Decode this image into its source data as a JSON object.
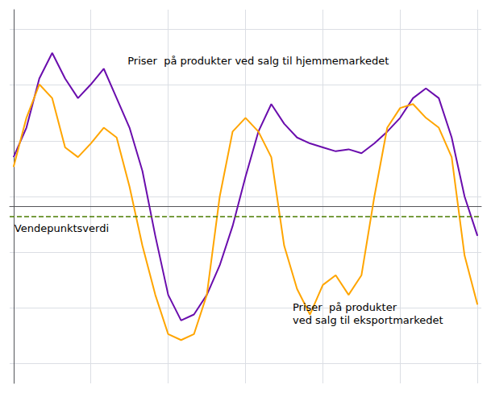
{
  "chart_data": {
    "type": "line",
    "x": [
      0,
      1,
      2,
      3,
      4,
      5,
      6,
      7,
      8,
      9,
      10,
      11,
      12,
      13,
      14,
      15,
      16,
      17,
      18,
      19,
      20,
      21,
      22,
      23,
      24,
      25,
      26,
      27,
      28,
      29,
      30,
      31,
      32,
      33,
      34,
      35,
      36
    ],
    "series": [
      {
        "color": "#6a0dad",
        "values": [
          2.5,
          4.0,
          6.5,
          7.8,
          6.5,
          5.5,
          6.2,
          7.0,
          5.5,
          4.0,
          1.8,
          -1.5,
          -4.5,
          -5.8,
          -5.5,
          -4.5,
          -3.0,
          -1.0,
          1.5,
          3.8,
          5.2,
          4.2,
          3.5,
          3.2,
          3.0,
          2.8,
          2.9,
          2.7,
          3.2,
          3.8,
          4.5,
          5.5,
          6.0,
          5.5,
          3.5,
          0.5,
          -1.5
        ]
      },
      {
        "color": "#ffa500",
        "values": [
          2.0,
          4.5,
          6.2,
          5.5,
          3.0,
          2.5,
          3.2,
          4.0,
          3.5,
          1.0,
          -2.0,
          -4.5,
          -6.5,
          -6.8,
          -6.5,
          -4.5,
          0.5,
          3.8,
          4.5,
          3.8,
          2.5,
          -2.0,
          -4.2,
          -5.5,
          -4.0,
          -3.5,
          -4.5,
          -3.5,
          0.5,
          4.0,
          5.0,
          5.2,
          4.5,
          4.0,
          2.5,
          -2.5,
          -5.0
        ]
      }
    ],
    "hline": {
      "y": -0.5,
      "color": "#4a7c00",
      "line_style": "dashed"
    },
    "annotations": [
      {
        "text": "Priser  på produkter ved salg til hjemmemarkedet"
      },
      {
        "text": "Priser  på produkter\nved salg til eksportmarkedet"
      },
      {
        "text": "Vendepunktsverdi"
      }
    ],
    "xlim": [
      -0.3,
      36.3
    ],
    "xticks": [
      0,
      6,
      12,
      18,
      24,
      30,
      36
    ],
    "ylim": [
      -9,
      10
    ],
    "yticks": [
      -8,
      -5.166666666666667,
      -2.333333333333333,
      0.5,
      3.333333333333333,
      6.166666666666667,
      9
    ],
    "grid": true,
    "tick_labels": false
  }
}
